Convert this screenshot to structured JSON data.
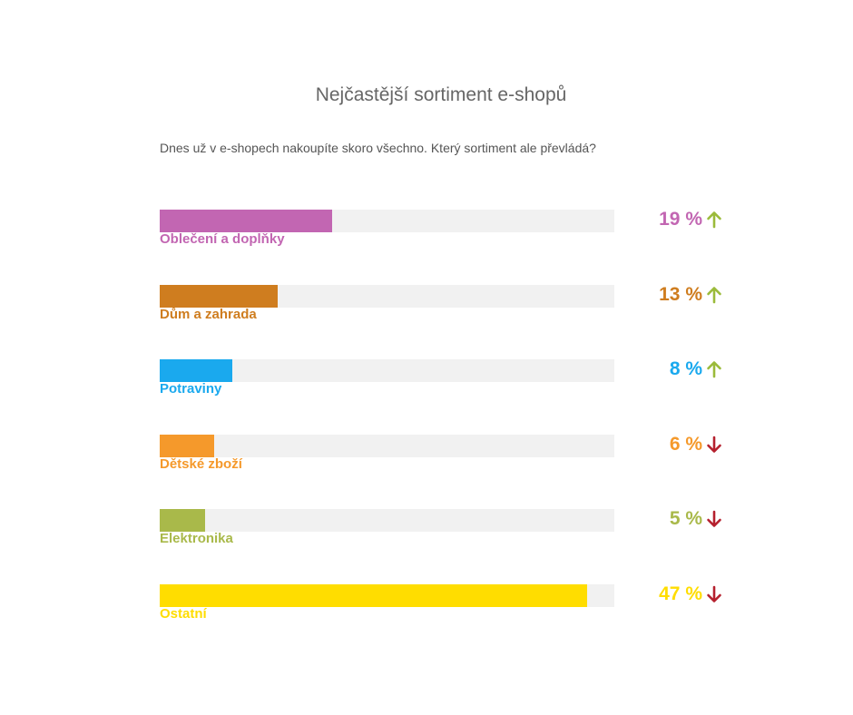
{
  "title": "Nejčastější sortiment e-shopů",
  "subtitle": "Dnes už v e-shopech nakoupíte skoro všechno. Který sortiment ale převládá?",
  "colors": {
    "track": "#f1f1f1",
    "trend_up": "#9bbb3a",
    "trend_down": "#b5202e"
  },
  "chart_data": {
    "type": "bar",
    "orientation": "horizontal",
    "ylim": [
      0,
      50
    ],
    "categories": [
      "Oblečení a doplňky",
      "Dům a zahrada",
      "Potraviny",
      "Dětské zboží",
      "Elektronika",
      "Ostatní"
    ],
    "values": [
      19,
      13,
      8,
      6,
      5,
      47
    ],
    "value_labels": [
      "19 %",
      "13 %",
      "8 %",
      "6 %",
      "5 %",
      "47 %"
    ],
    "trends": [
      "up",
      "up",
      "up",
      "down",
      "down",
      "down"
    ],
    "colors": [
      "#c266b2",
      "#cf7d1f",
      "#1aa9ee",
      "#f5992b",
      "#a9b94a",
      "#ffdd00"
    ]
  }
}
